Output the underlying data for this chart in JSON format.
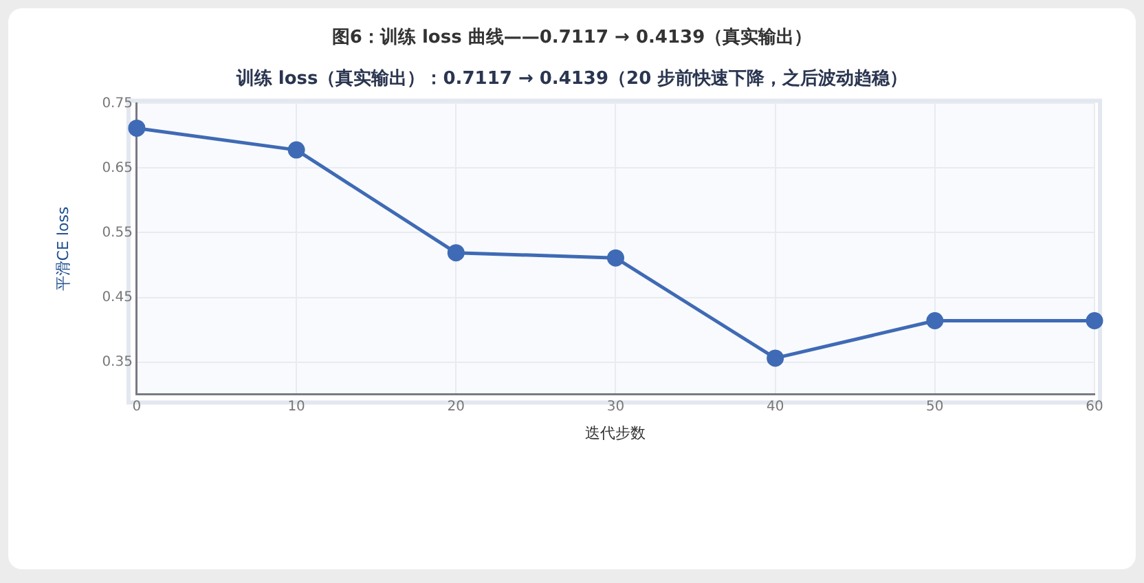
{
  "chart_data": {
    "type": "line",
    "title": "图6：训练 loss 曲线——0.7117 → 0.4139（真实输出）",
    "subtitle": "训练 loss（真实输出）：0.7117 → 0.4139（20 步前快速下降，之后波动趋稳）",
    "xlabel": "迭代步数",
    "ylabel": "平滑CE loss",
    "x": [
      0,
      10,
      20,
      30,
      40,
      50,
      60
    ],
    "series": [
      {
        "color": "#3f6ab5",
        "values": [
          0.7117,
          0.678,
          0.519,
          0.511,
          0.356,
          0.4139,
          0.4139
        ]
      }
    ],
    "xlim": [
      0,
      60
    ],
    "xticks": [
      0,
      10,
      20,
      30,
      40,
      50,
      60
    ],
    "ylim": [
      0.3,
      0.75
    ],
    "yticks": [
      0.35,
      0.45,
      0.55,
      0.65,
      0.75
    ],
    "grid": true,
    "legend": false,
    "marker": "circle",
    "line_style": "solid"
  }
}
